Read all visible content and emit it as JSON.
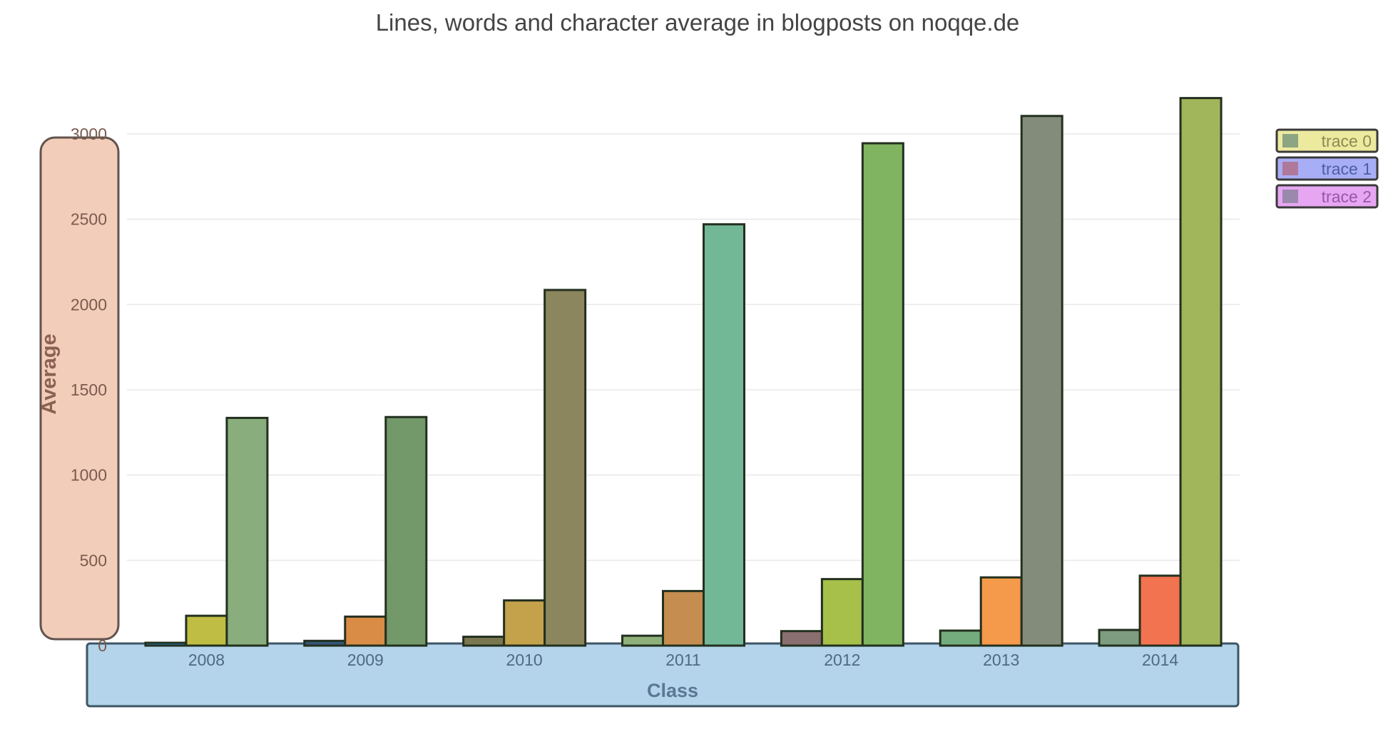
{
  "chart_data": {
    "type": "bar",
    "title": "Lines, words and character average in blogposts on noqqe.de",
    "xlabel": "Class",
    "ylabel": "Average",
    "categories": [
      "2008",
      "2009",
      "2010",
      "2011",
      "2012",
      "2013",
      "2014"
    ],
    "yticks": [
      0,
      500,
      1000,
      1500,
      2000,
      2500,
      3000
    ],
    "ylim": [
      0,
      3200
    ],
    "grid": true,
    "legend_position": "top-right",
    "series": [
      {
        "name": "trace 0",
        "values": [
          12,
          28,
          52,
          58,
          85,
          88,
          92
        ]
      },
      {
        "name": "trace 1",
        "values": [
          175,
          170,
          265,
          320,
          390,
          400,
          410
        ]
      },
      {
        "name": "trace 2",
        "values": [
          1335,
          1340,
          2085,
          2470,
          2945,
          3105,
          3210
        ]
      }
    ],
    "bar_colors": [
      [
        "#1f77b4",
        "#34567a",
        "#7b7750",
        "#8fb07a",
        "#8a6f70",
        "#74ad7d",
        "#7d9c80"
      ],
      [
        "#c0bd44",
        "#d98c45",
        "#c3a24b",
        "#c58d4f",
        "#a6c04a",
        "#f59a4a",
        "#f27350"
      ],
      [
        "#89ad7d",
        "#73996a",
        "#8b865d",
        "#72b897",
        "#80b460",
        "#838c7b",
        "#a1b55a"
      ]
    ],
    "legend_colors": {
      "boxes": [
        "#ecea9f",
        "#a8aef5",
        "#e6a6f2"
      ],
      "swatches": [
        "#8ca583",
        "#b0789a",
        "#9b88ad"
      ],
      "text": [
        "#8c8a52",
        "#4c5fa3",
        "#9b55a8"
      ]
    },
    "highlight_colors": {
      "y_axis_region": "#f2cbb7",
      "x_axis_region": "#b3d4ea"
    }
  }
}
